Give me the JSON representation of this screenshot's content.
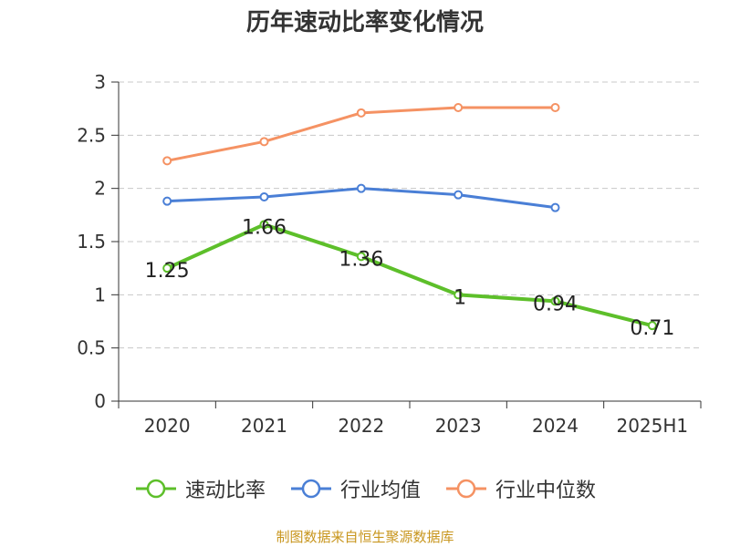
{
  "chart_data": {
    "type": "line",
    "title": "历年速动比率变化情况",
    "categories": [
      "2020",
      "2021",
      "2022",
      "2023",
      "2024",
      "2025H1"
    ],
    "ylim": [
      0,
      3
    ],
    "yticks": [
      "0",
      "0.5",
      "1",
      "1.5",
      "2",
      "2.5",
      "3"
    ],
    "grid": true,
    "legend_position": "bottom",
    "series": [
      {
        "name": "速动比率",
        "color": "#5dbf2a",
        "values": [
          1.25,
          1.66,
          1.36,
          1.0,
          0.94,
          0.71
        ],
        "labels": [
          "1.25",
          "1.66",
          "1.36",
          "1",
          "0.94",
          "0.71"
        ]
      },
      {
        "name": "行业均值",
        "color": "#4a7fd6",
        "values": [
          1.88,
          1.92,
          2.0,
          1.94,
          1.82,
          null
        ]
      },
      {
        "name": "行业中位数",
        "color": "#f59263",
        "values": [
          2.26,
          2.44,
          2.71,
          2.76,
          2.76,
          null
        ]
      }
    ]
  },
  "source": "制图数据来自恒生聚源数据库"
}
